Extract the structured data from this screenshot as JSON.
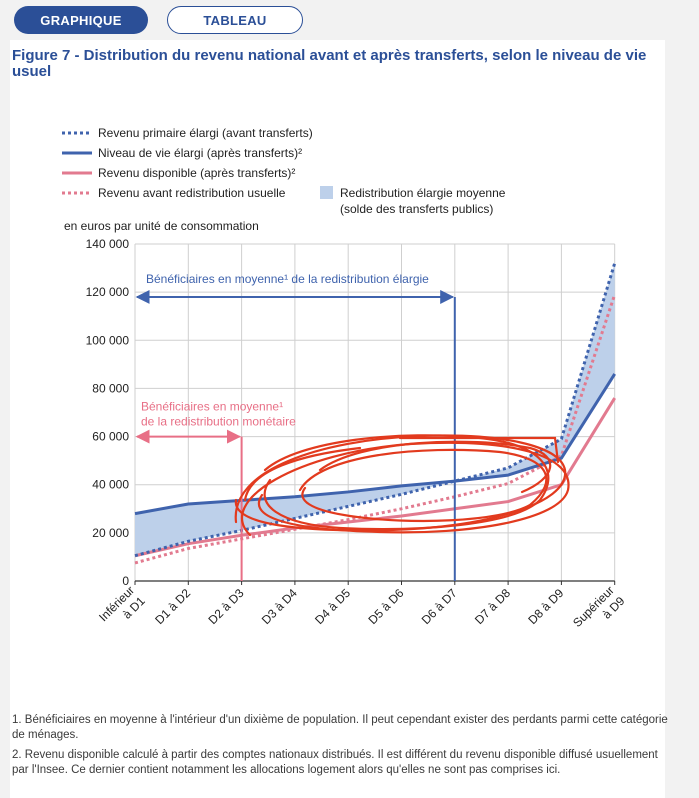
{
  "tabs": {
    "graph_label": "GRAPHIQUE",
    "table_label": "TABLEAU"
  },
  "colors": {
    "blue": "#3f63ad",
    "pink": "#e27a8f",
    "fill": "#bdd0ea",
    "annotation_pink": "#e86f86",
    "scribble": "#e23a1e",
    "title": "#2b4f97"
  },
  "chart_data": {
    "type": "line",
    "title": "Figure 7 - Distribution du revenu national avant et après transferts, selon le niveau de vie usuel",
    "ylabel": "en euros par unité de consommation",
    "ylim": [
      0,
      140000
    ],
    "yticks": [
      "0",
      "20 000",
      "40 000",
      "60 000",
      "80 000",
      "100 000",
      "120 000",
      "140 000"
    ],
    "categories": [
      "Inférieur à D1",
      "D1 à D2",
      "D2 à D3",
      "D3 à D4",
      "D4 à D5",
      "D5 à D6",
      "D6 à D7",
      "D7 à D8",
      "D8 à D9",
      "Supérieur à D9"
    ],
    "series": [
      {
        "name": "Revenu primaire élargi (avant transferts)",
        "style": "dotted",
        "color": "#3f63ad",
        "values": [
          10500,
          16500,
          21000,
          26000,
          31000,
          36000,
          41500,
          47000,
          59000,
          132000
        ]
      },
      {
        "name": "Niveau de vie élargi (après transferts)²",
        "style": "solid",
        "color": "#3f63ad",
        "values": [
          28000,
          32000,
          33500,
          35000,
          37000,
          39500,
          41500,
          44000,
          51000,
          86000
        ]
      },
      {
        "name": "Revenu disponible (après transferts)²",
        "style": "solid",
        "color": "#e27a8f",
        "values": [
          10500,
          15500,
          19000,
          22000,
          24500,
          27000,
          30000,
          33000,
          40000,
          76000
        ]
      },
      {
        "name": "Revenu avant redistribution usuelle",
        "style": "dotted",
        "color": "#e27a8f",
        "values": [
          7500,
          13500,
          17500,
          21500,
          25500,
          30000,
          35000,
          40500,
          52000,
          119000
        ]
      }
    ],
    "area_label": "Redistribution élargie moyenne\n(solde des transferts publics)",
    "annotations": [
      {
        "text": "Bénéficiaires en moyenne¹ de la redistribution élargie",
        "y": 118000,
        "to": "D6 à D7",
        "color": "blue"
      },
      {
        "text_line1": "Bénéficiaires en moyenne¹",
        "text_line2": "de la redistribution monétaire",
        "y": 60000,
        "to": "D2 à D3",
        "color": "pink"
      }
    ]
  },
  "footnotes": [
    "1. Bénéficiaires en moyenne à l'intérieur d'un dixième de population. Il peut cependant exister des perdants parmi cette catégorie de ménages.",
    "2. Revenu disponible calculé à partir des comptes nationaux distribués. Il est différent du revenu disponible diffusé usuellement par l'Insee. Ce dernier contient notamment les allocations logement alors qu'elles ne sont pas comprises ici."
  ]
}
